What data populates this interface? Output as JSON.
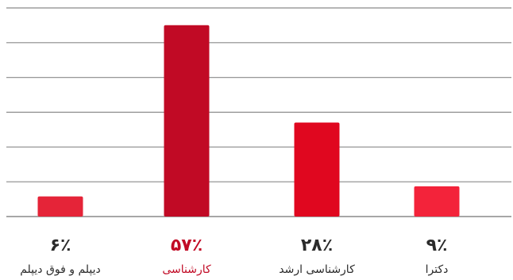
{
  "chart_data": {
    "type": "bar",
    "categories": [
      "دیپلم و فوق دیپلم",
      "کارشناسی",
      "کارشناسی ارشد",
      "دکترا"
    ],
    "values": [
      6,
      57,
      28,
      9
    ],
    "value_labels": [
      "۶٪",
      "۵۷٪",
      "۲۸٪",
      "۹٪"
    ],
    "ylim": [
      0,
      60
    ],
    "grid": true,
    "bar_colors": [
      "#e52438",
      "#c10a25",
      "#e0071f",
      "#f3233a"
    ],
    "highlight_index": 1,
    "label_color": "#2b2b2b",
    "highlight_label_color": "#c10a25",
    "grid_color": "#8a8a8a"
  }
}
